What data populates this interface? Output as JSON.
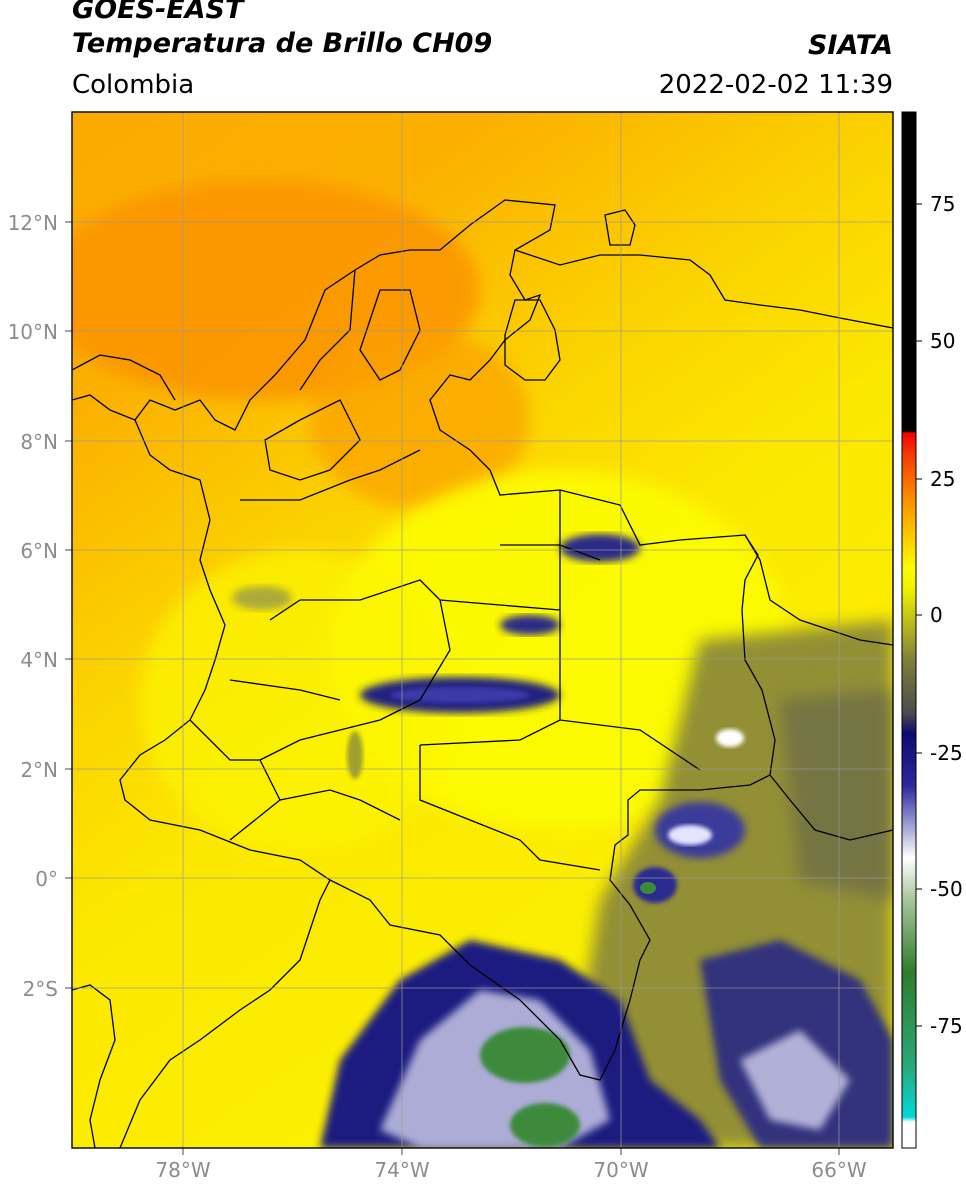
{
  "header": {
    "satellite": "GOES-EAST",
    "product": "Temperatura de Brillo CH09",
    "region": "Colombia",
    "source": "SIATA",
    "datetime": "2022-02-02 11:39"
  },
  "map": {
    "lon_labels": [
      "78°W",
      "74°W",
      "70°W",
      "66°W"
    ],
    "lat_labels": [
      "12°N",
      "10°N",
      "8°N",
      "6°N",
      "4°N",
      "2°N",
      "0°",
      "2°S"
    ],
    "colors": {
      "warm": "#fcfc00",
      "orange": "#fba800",
      "olive": "#7f7d3a",
      "navy": "#1a1a7e",
      "white": "#f6f6ff",
      "green": "#3d8a3d"
    }
  },
  "colorbar": {
    "tick_labels": [
      "75",
      "50",
      "25",
      "0",
      "-25",
      "-50",
      "-75"
    ],
    "range": [
      -100,
      90
    ]
  }
}
